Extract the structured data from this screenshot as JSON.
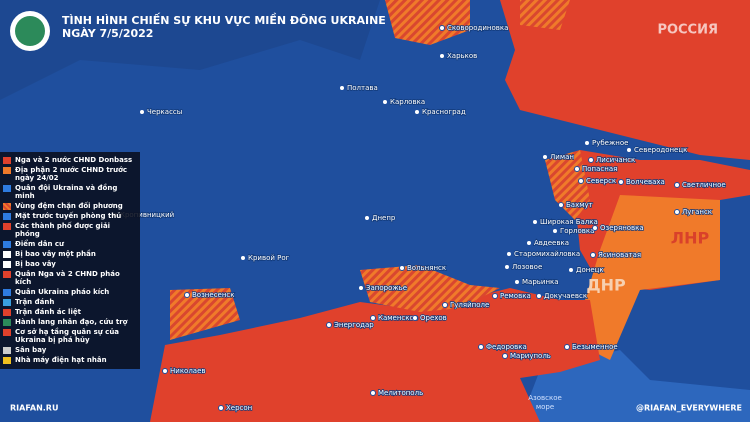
{
  "header": {
    "title": "TÌNH HÌNH CHIẾN SỰ KHU VỰC MIỀN ĐÔNG UKRAINE",
    "date": "NGÀY 7/5/2022"
  },
  "watermark": "РОССИЯ",
  "legend": {
    "items": [
      "Nga và 2 nước CHND Donbass",
      "Địa phận 2 nước CHND trước ngày 24/02",
      "Quân đội Ukraina và đồng minh",
      "Vùng đệm chặn đối phương",
      "Mặt trước tuyến phòng thủ",
      "Các thành phố được giải phóng",
      "Điểm dân cư",
      "Bị bao vây một phần",
      "Bị bao vây",
      "Quân Nga và 2 CHND pháo kích",
      "Quân Ukraina pháo kích",
      "Trận đánh",
      "Trận đánh ác liệt",
      "Hành lang nhân đạo, cứu trợ",
      "Cơ sở hạ tầng quân sự của Ukraina bị phá hủy",
      "Sân bay",
      "Nhà máy điện hạt nhân"
    ]
  },
  "places": [
    "Сковородиновка",
    "Харьков",
    "Полтава",
    "Черкассы",
    "Карловка",
    "Красноград",
    "Рубежное",
    "Северодонецк",
    "Лиман",
    "Лисичанск",
    "Попасная",
    "Северск",
    "Волчеваха",
    "Светличное",
    "Луганск",
    "Бахмут",
    "Кропивницкий",
    "Днепр",
    "Широкая Балка",
    "Горловка",
    "Озеряновка",
    "Авдеевка",
    "Старомихайловка",
    "Ясиноватая",
    "Кривой Рог",
    "Вольнянск",
    "Лозовое",
    "Донецк",
    "Марьинка",
    "Запорожье",
    "Вознесенск",
    "Ремовка",
    "Докучаевск",
    "Гуляйполе",
    "Каменское",
    "Орехов",
    "Энергодар",
    "Федоровка",
    "Безыменное",
    "Мариуполь",
    "Николаев",
    "Мелитополь",
    "Херсон"
  ],
  "regions": [
    "ЛНР",
    "ДНР"
  ],
  "sea": [
    "Азовское",
    "море"
  ],
  "footer": {
    "site": "RIAFAN.RU",
    "social": "@RIAFAN_EVERYWHERE"
  }
}
